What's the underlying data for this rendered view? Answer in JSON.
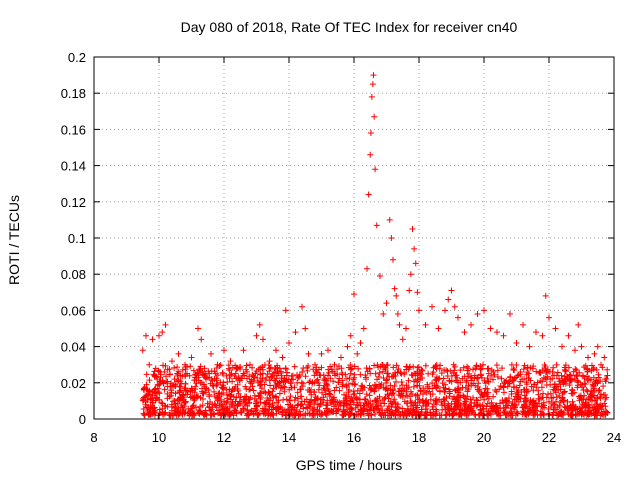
{
  "chart_data": {
    "type": "scatter",
    "title": "Day 080 of 2018, Rate Of TEC Index for receiver cn40",
    "xlabel": "GPS time / hours",
    "ylabel": "ROTI / TECUs",
    "xlim": [
      8,
      24
    ],
    "ylim": [
      0,
      0.2
    ],
    "xticks": [
      8,
      10,
      12,
      14,
      16,
      18,
      20,
      22,
      24
    ],
    "xtick_labels": [
      "8",
      "10",
      "12",
      "14",
      "16",
      "18",
      "20",
      "22",
      "24"
    ],
    "yticks": [
      0,
      0.02,
      0.04,
      0.06,
      0.08,
      0.1,
      0.12,
      0.14,
      0.16,
      0.18,
      0.2
    ],
    "ytick_labels": [
      "0",
      "0.02",
      "0.04",
      "0.06",
      "0.08",
      "0.1",
      "0.12",
      "0.14",
      "0.16",
      "0.18",
      "0.2"
    ],
    "grid": true,
    "marker": "+",
    "color": "#ff0000",
    "series": [
      {
        "name": "ROTI",
        "x": [
          9.5,
          9.6,
          9.7,
          9.8,
          9.9,
          10.0,
          10.1,
          10.2,
          10.4,
          10.6,
          10.8,
          11.0,
          11.2,
          11.3,
          11.4,
          11.6,
          11.8,
          12.0,
          12.2,
          12.4,
          12.6,
          12.8,
          13.0,
          13.1,
          13.2,
          13.4,
          13.6,
          13.8,
          13.9,
          14.0,
          14.2,
          14.4,
          14.5,
          14.6,
          14.8,
          15.0,
          15.2,
          15.4,
          15.6,
          15.8,
          15.9,
          16.0,
          16.1,
          16.2,
          16.3,
          16.4,
          16.45,
          16.5,
          16.52,
          16.55,
          16.58,
          16.6,
          16.62,
          16.65,
          16.7,
          16.8,
          16.9,
          17.0,
          17.1,
          17.15,
          17.2,
          17.25,
          17.3,
          17.35,
          17.4,
          17.5,
          17.6,
          17.7,
          17.75,
          17.8,
          17.85,
          17.9,
          17.95,
          18.0,
          18.2,
          18.4,
          18.6,
          18.8,
          18.9,
          19.0,
          19.1,
          19.2,
          19.4,
          19.6,
          19.8,
          20.0,
          20.2,
          20.4,
          20.6,
          20.8,
          21.0,
          21.2,
          21.4,
          21.6,
          21.8,
          21.9,
          22.0,
          22.2,
          22.4,
          22.6,
          22.8,
          22.9,
          23.0,
          23.2,
          23.4,
          23.5,
          23.6,
          23.7,
          23.8
        ],
        "y": [
          0.038,
          0.046,
          0.03,
          0.044,
          0.028,
          0.046,
          0.048,
          0.052,
          0.032,
          0.036,
          0.03,
          0.034,
          0.05,
          0.044,
          0.028,
          0.036,
          0.03,
          0.038,
          0.032,
          0.028,
          0.038,
          0.03,
          0.046,
          0.052,
          0.044,
          0.032,
          0.038,
          0.034,
          0.06,
          0.042,
          0.048,
          0.062,
          0.05,
          0.036,
          0.03,
          0.036,
          0.038,
          0.03,
          0.034,
          0.04,
          0.046,
          0.069,
          0.036,
          0.042,
          0.05,
          0.083,
          0.124,
          0.146,
          0.158,
          0.178,
          0.185,
          0.19,
          0.167,
          0.138,
          0.107,
          0.079,
          0.058,
          0.064,
          0.11,
          0.1,
          0.088,
          0.072,
          0.068,
          0.058,
          0.052,
          0.044,
          0.05,
          0.071,
          0.08,
          0.105,
          0.094,
          0.086,
          0.07,
          0.06,
          0.052,
          0.062,
          0.05,
          0.06,
          0.066,
          0.071,
          0.062,
          0.056,
          0.048,
          0.052,
          0.058,
          0.06,
          0.05,
          0.048,
          0.046,
          0.058,
          0.042,
          0.052,
          0.04,
          0.048,
          0.046,
          0.068,
          0.056,
          0.05,
          0.04,
          0.046,
          0.038,
          0.052,
          0.04,
          0.034,
          0.036,
          0.04,
          0.03,
          0.034,
          0.024
        ]
      }
    ],
    "band": {
      "description": "dense continuous background of ROTI values between 0.002 and 0.03 TECUs from 9.5 to 23.8 hours",
      "x_range": [
        9.5,
        23.8
      ],
      "y_range": [
        0.002,
        0.03
      ]
    }
  }
}
